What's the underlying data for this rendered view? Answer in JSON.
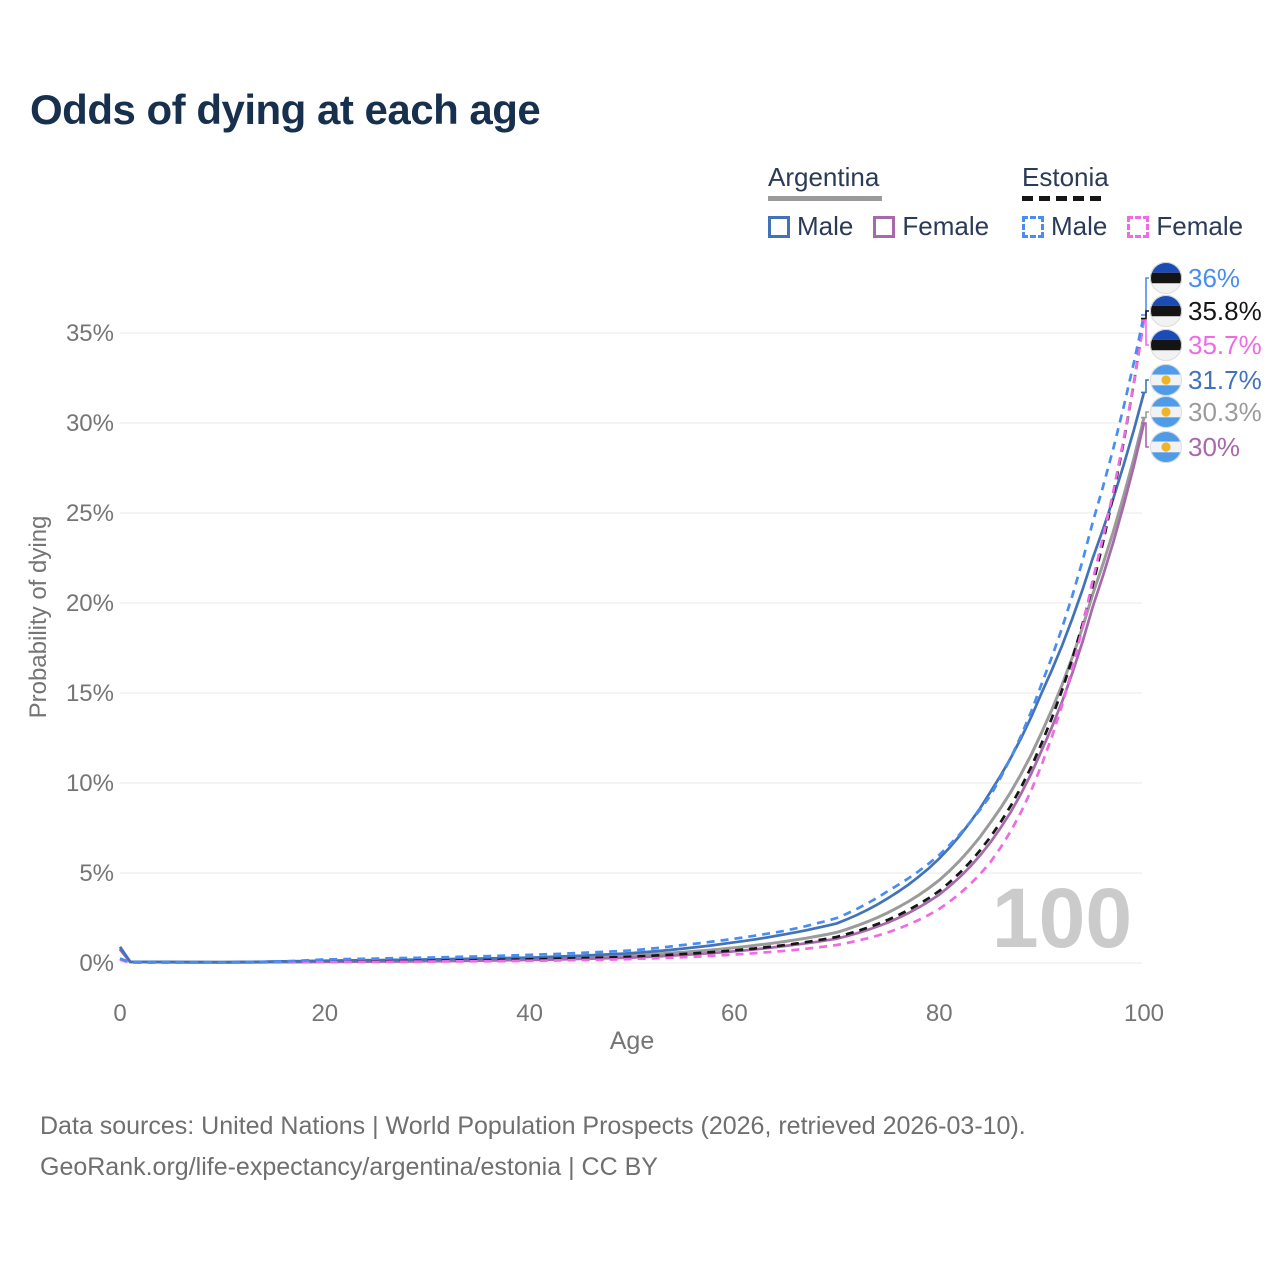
{
  "title": "Odds of dying at each age",
  "legend": {
    "groups": [
      {
        "country": "Argentina",
        "line_style": "solid",
        "underline_color": "#9b9b9b",
        "underline_width": 114,
        "items": [
          {
            "label": "Male",
            "series": "argentina-male"
          },
          {
            "label": "Female",
            "series": "argentina-female"
          }
        ]
      },
      {
        "country": "Estonia",
        "line_style": "dashed",
        "underline_color": "#161616",
        "underline_width": 85,
        "items": [
          {
            "label": "Male",
            "series": "estonia-male"
          },
          {
            "label": "Female",
            "series": "estonia-female"
          }
        ]
      }
    ]
  },
  "watermark": "100",
  "footer": {
    "line1": "Data sources: United Nations | World Population Prospects (2026, retrieved 2026-03-10).",
    "line2": "GeoRank.org/life-expectancy/argentina/estonia | CC BY"
  },
  "chart_data": {
    "type": "line",
    "title": "Odds of dying at each age",
    "xlabel": "Age",
    "ylabel": "Probability of dying",
    "xlim": [
      0,
      100
    ],
    "ylim": [
      0,
      38
    ],
    "x_ticks": [
      0,
      20,
      40,
      60,
      80,
      100
    ],
    "y_tick_values": [
      0,
      5,
      10,
      15,
      20,
      25,
      30,
      35
    ],
    "y_tick_labels": [
      "0%",
      "5%",
      "10%",
      "15%",
      "20%",
      "25%",
      "30%",
      "35%"
    ],
    "grid": "horizontal",
    "legend_position": "top-right",
    "ages": [
      0,
      1,
      10,
      20,
      30,
      40,
      50,
      55,
      60,
      65,
      70,
      75,
      80,
      85,
      90,
      95,
      100
    ],
    "series": [
      {
        "id": "estonia-male",
        "name": "Estonia Male",
        "country": "Estonia",
        "sex": "Male",
        "color": "#4a8df2",
        "dash": true,
        "end_label": "36%",
        "end_value": 36.0,
        "values": [
          0.25,
          0.04,
          0.03,
          0.2,
          0.3,
          0.45,
          0.7,
          1.0,
          1.35,
          1.8,
          2.5,
          4.0,
          6.0,
          9.3,
          15.5,
          24.5,
          36.0
        ]
      },
      {
        "id": "estonia-all",
        "name": "Estonia Both Sexes",
        "country": "Estonia",
        "sex": "Both",
        "color": "#161616",
        "dash": true,
        "end_label": "35.8%",
        "end_value": 35.8,
        "values": [
          0.22,
          0.035,
          0.03,
          0.08,
          0.12,
          0.2,
          0.35,
          0.5,
          0.7,
          1.0,
          1.45,
          2.4,
          4.0,
          7.0,
          12.2,
          21.0,
          35.8
        ]
      },
      {
        "id": "estonia-female",
        "name": "Estonia Female",
        "country": "Estonia",
        "sex": "Female",
        "color": "#f06ae6",
        "dash": true,
        "end_label": "35.7%",
        "end_value": 35.7,
        "values": [
          0.18,
          0.03,
          0.02,
          0.05,
          0.08,
          0.12,
          0.22,
          0.32,
          0.47,
          0.68,
          1.0,
          1.7,
          3.0,
          5.6,
          11.0,
          21.3,
          35.7
        ]
      },
      {
        "id": "argentina-male",
        "name": "Argentina Male",
        "country": "Argentina",
        "sex": "Male",
        "color": "#4273b8",
        "dash": false,
        "end_label": "31.7%",
        "end_value": 31.7,
        "values": [
          0.9,
          0.07,
          0.05,
          0.13,
          0.2,
          0.3,
          0.55,
          0.8,
          1.15,
          1.6,
          2.2,
          3.6,
          5.8,
          9.5,
          15.0,
          22.5,
          31.7
        ]
      },
      {
        "id": "argentina-all",
        "name": "Argentina Both Sexes",
        "country": "Argentina",
        "sex": "Both",
        "color": "#9b9b9b",
        "dash": false,
        "end_label": "30.3%",
        "end_value": 30.3,
        "values": [
          0.8,
          0.06,
          0.04,
          0.1,
          0.15,
          0.25,
          0.42,
          0.6,
          0.85,
          1.2,
          1.7,
          2.8,
          4.6,
          7.8,
          12.8,
          20.5,
          30.3
        ]
      },
      {
        "id": "argentina-female",
        "name": "Argentina Female",
        "country": "Argentina",
        "sex": "Female",
        "color": "#a769aa",
        "dash": false,
        "end_label": "30%",
        "end_value": 30.0,
        "values": [
          0.75,
          0.05,
          0.03,
          0.06,
          0.1,
          0.17,
          0.3,
          0.45,
          0.65,
          0.95,
          1.35,
          2.25,
          3.8,
          6.7,
          11.8,
          19.8,
          30.0
        ]
      }
    ],
    "flag_colors": {
      "Estonia": {
        "top": "#1b4cb5",
        "middle": "#141414",
        "bottom": "#f2f2f2"
      },
      "Argentina": {
        "top": "#4f9be8",
        "middle": "#f2f2f2",
        "bottom": "#4f9be8",
        "sun": "#f0b42a"
      }
    }
  }
}
